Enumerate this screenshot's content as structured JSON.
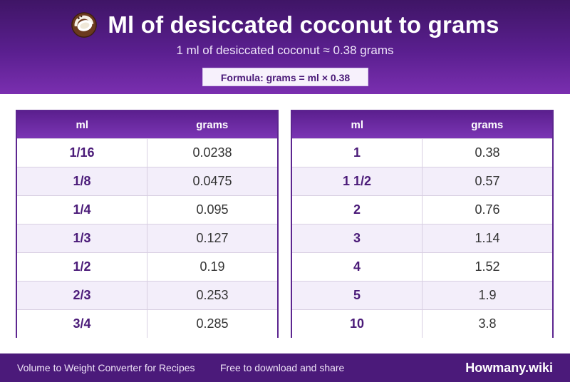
{
  "header": {
    "title": "Ml of desiccated coconut to grams",
    "subtitle": "1 ml of desiccated coconut ≈ 0.38 grams",
    "formula": "Formula: grams = ml × 0.38",
    "icon": "coconut-icon"
  },
  "tables": [
    {
      "columns": [
        "ml",
        "grams"
      ],
      "rows": [
        {
          "ml": "1/16",
          "grams": "0.0238"
        },
        {
          "ml": "1/8",
          "grams": "0.0475"
        },
        {
          "ml": "1/4",
          "grams": "0.095"
        },
        {
          "ml": "1/3",
          "grams": "0.127"
        },
        {
          "ml": "1/2",
          "grams": "0.19"
        },
        {
          "ml": "2/3",
          "grams": "0.253"
        },
        {
          "ml": "3/4",
          "grams": "0.285"
        }
      ]
    },
    {
      "columns": [
        "ml",
        "grams"
      ],
      "rows": [
        {
          "ml": "1",
          "grams": "0.38"
        },
        {
          "ml": "1 1/2",
          "grams": "0.57"
        },
        {
          "ml": "2",
          "grams": "0.76"
        },
        {
          "ml": "3",
          "grams": "1.14"
        },
        {
          "ml": "4",
          "grams": "1.52"
        },
        {
          "ml": "5",
          "grams": "1.9"
        },
        {
          "ml": "10",
          "grams": "3.8"
        }
      ]
    }
  ],
  "footer": {
    "left_text": "Volume to Weight Converter for Recipes",
    "middle_text": "Free to download and share",
    "brand": "Howmany.wiki"
  },
  "colors": {
    "accent": "#5a1f8f",
    "header_dark": "#3f1566",
    "footer": "#4b1a7a",
    "ml_text": "#4a1a78"
  }
}
